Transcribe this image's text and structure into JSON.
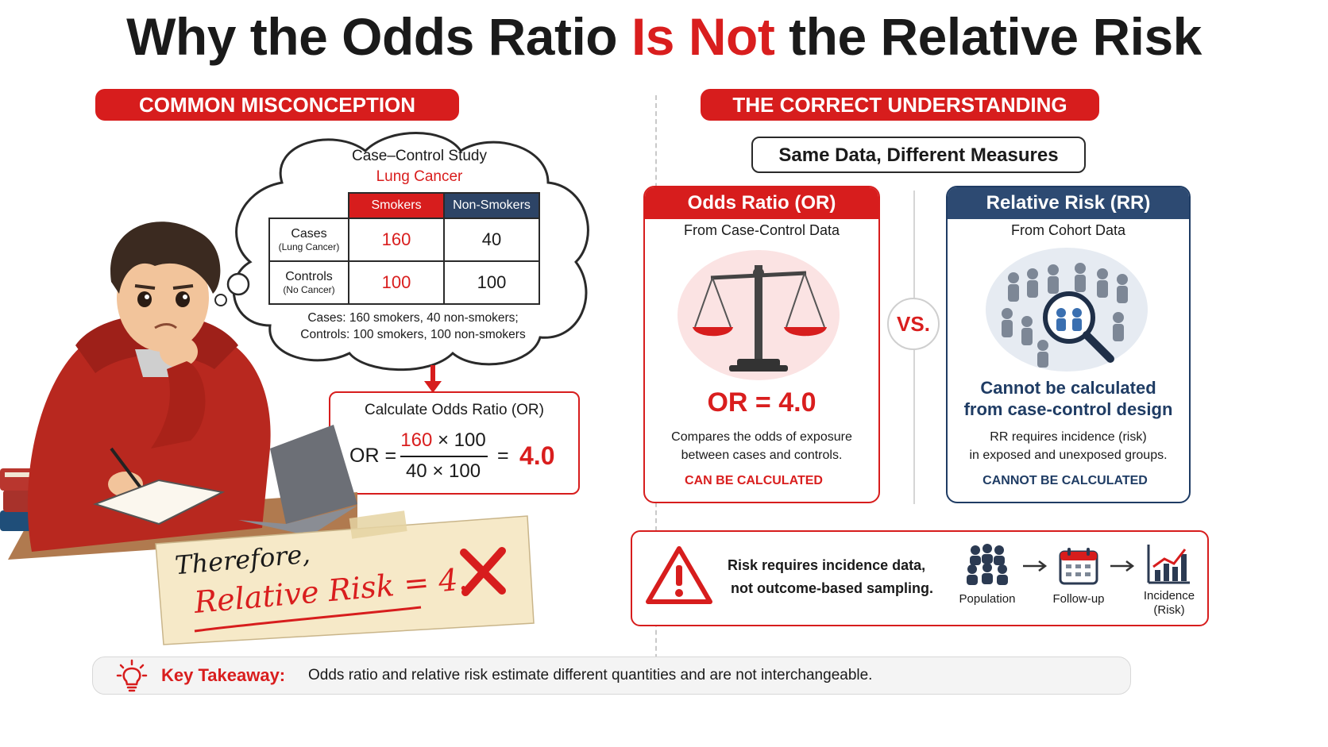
{
  "title": {
    "before": "Why the Odds Ratio ",
    "highlight": "Is Not",
    "after": " the Relative Risk"
  },
  "left": {
    "pill": "COMMON MISCONCEPTION",
    "cloud": {
      "title": "Case–Control Study",
      "subtitle": "Lung Cancer",
      "col_headers": [
        "Smokers",
        "Non-Smokers"
      ],
      "rows": [
        {
          "label": "Cases",
          "sublabel": "(Lung Cancer)",
          "smokers": "160",
          "non_smokers": "40"
        },
        {
          "label": "Controls",
          "sublabel": "(No Cancer)",
          "smokers": "100",
          "non_smokers": "100"
        }
      ],
      "summary_line1": "Cases: 160 smokers, 40 non-smokers;",
      "summary_line2": "Controls: 100 smokers, 100 non-smokers"
    },
    "calc": {
      "title": "Calculate Odds Ratio (OR)",
      "or_label": "OR =",
      "num_a": "160",
      "num_b": " × 100",
      "denominator": "40 × 100",
      "equals": "=",
      "result": "4.0"
    },
    "note": {
      "line1": "Therefore,",
      "line2": "Relative Risk = 4."
    }
  },
  "right": {
    "pill": "THE CORRECT UNDERSTANDING",
    "subheading": "Same Data, Different Measures",
    "vs": "VS.",
    "or_card": {
      "header": "Odds Ratio (OR)",
      "source": "From Case-Control Data",
      "value": "OR = 4.0",
      "desc1": "Compares the odds of exposure",
      "desc2": "between cases and controls.",
      "status": "CAN BE CALCULATED"
    },
    "rr_card": {
      "header": "Relative Risk (RR)",
      "source": "From Cohort Data",
      "value1": "Cannot be calculated",
      "value2": "from case-control design",
      "desc1": "RR requires incidence (risk)",
      "desc2": "in exposed and unexposed groups.",
      "status": "CANNOT BE CALCULATED"
    },
    "warning": {
      "line1": "Risk requires incidence data,",
      "line2": "not outcome-based sampling.",
      "steps": [
        {
          "label": "Population",
          "icon": "population-icon"
        },
        {
          "label": "Follow-up",
          "icon": "calendar-icon"
        },
        {
          "label": "Incidence\n(Risk)",
          "icon": "incidence-chart-icon"
        }
      ]
    }
  },
  "takeaway": {
    "label": "Key Takeaway:",
    "text": "Odds ratio and relative risk estimate different quantities and are not interchangeable."
  },
  "colors": {
    "red": "#d71d1d",
    "navy": "#1f3c64",
    "dark": "#1a1a1a"
  }
}
